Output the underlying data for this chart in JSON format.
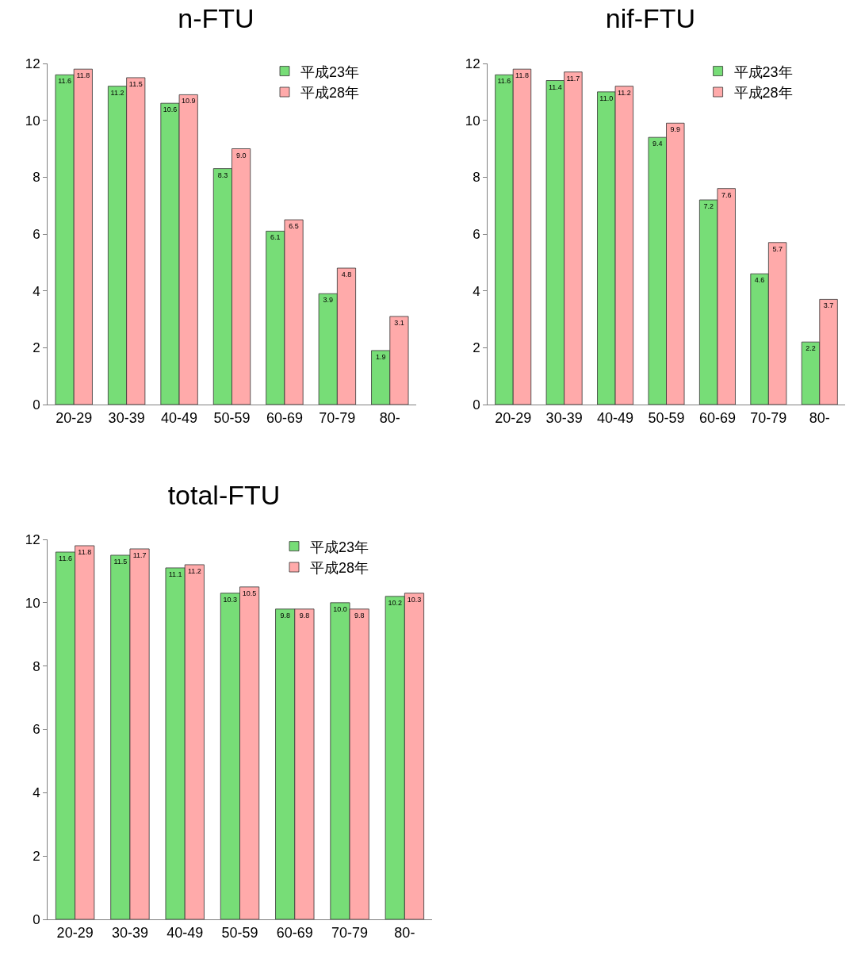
{
  "chart_data": [
    {
      "type": "bar",
      "title": "n-FTU",
      "categories": [
        "20-29",
        "30-39",
        "40-49",
        "50-59",
        "60-69",
        "70-79",
        "80-"
      ],
      "ylim": [
        0,
        12
      ],
      "yticks": [
        0,
        2,
        4,
        6,
        8,
        10,
        12
      ],
      "grid": false,
      "legend": "top right",
      "series": [
        {
          "name": "平成23年",
          "color": "#77dd77",
          "values": [
            11.6,
            11.2,
            10.6,
            8.3,
            6.1,
            3.9,
            1.9
          ],
          "value_labels": [
            "11.6",
            "11.2",
            "10.6",
            "8.3",
            "6.1",
            "3.9",
            "1.9"
          ]
        },
        {
          "name": "平成28年",
          "color": "#ffaaaa",
          "values": [
            11.8,
            11.5,
            10.9,
            9.0,
            6.5,
            4.8,
            3.1
          ],
          "value_labels": [
            "11.8",
            "11.5",
            "10.9",
            "9.0",
            "6.5",
            "4.8",
            "3.1"
          ]
        }
      ]
    },
    {
      "type": "bar",
      "title": "nif-FTU",
      "categories": [
        "20-29",
        "30-39",
        "40-49",
        "50-59",
        "60-69",
        "70-79",
        "80-"
      ],
      "ylim": [
        0,
        12
      ],
      "yticks": [
        0,
        2,
        4,
        6,
        8,
        10,
        12
      ],
      "grid": false,
      "legend": "top right",
      "series": [
        {
          "name": "平成23年",
          "color": "#77dd77",
          "values": [
            11.6,
            11.4,
            11.0,
            9.4,
            7.2,
            4.6,
            2.2
          ],
          "value_labels": [
            "11.6",
            "11.4",
            "11.0",
            "9.4",
            "7.2",
            "4.6",
            "2.2"
          ]
        },
        {
          "name": "平成28年",
          "color": "#ffaaaa",
          "values": [
            11.8,
            11.7,
            11.2,
            9.9,
            7.6,
            5.7,
            3.7
          ],
          "value_labels": [
            "11.8",
            "11.7",
            "11.2",
            "9.9",
            "7.6",
            "5.7",
            "3.7"
          ]
        }
      ]
    },
    {
      "type": "bar",
      "title": "total-FTU",
      "categories": [
        "20-29",
        "30-39",
        "40-49",
        "50-59",
        "60-69",
        "70-79",
        "80-"
      ],
      "ylim": [
        0,
        12
      ],
      "yticks": [
        0,
        2,
        4,
        6,
        8,
        10,
        12
      ],
      "grid": false,
      "legend": "top right",
      "series": [
        {
          "name": "平成23年",
          "color": "#77dd77",
          "values": [
            11.6,
            11.5,
            11.1,
            10.3,
            9.8,
            10.0,
            10.2
          ],
          "value_labels": [
            "11.6",
            "11.5",
            "11.1",
            "10.3",
            "9.8",
            "10.0",
            "10.2"
          ]
        },
        {
          "name": "平成28年",
          "color": "#ffaaaa",
          "values": [
            11.8,
            11.7,
            11.2,
            10.5,
            9.8,
            9.8,
            10.3
          ],
          "value_labels": [
            "11.8",
            "11.7",
            "11.2",
            "10.5",
            "9.8",
            "9.8",
            "10.3"
          ]
        }
      ]
    }
  ]
}
